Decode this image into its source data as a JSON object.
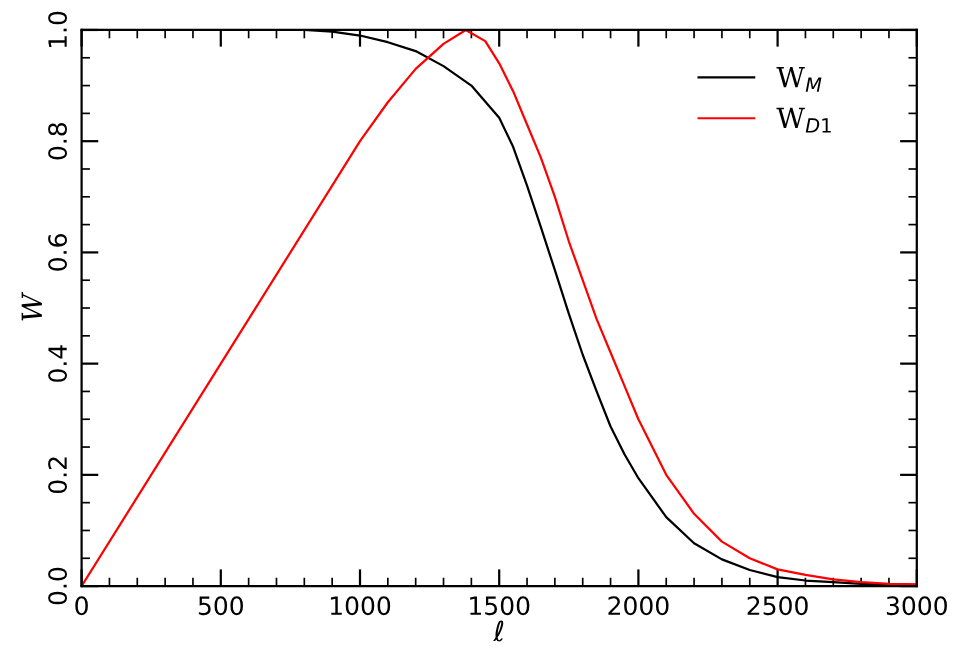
{
  "chart_data": {
    "type": "line",
    "xlabel": "ℓ",
    "ylabel": "W",
    "xlim": [
      0,
      3000
    ],
    "xticks": [
      0,
      500,
      1000,
      1500,
      2000,
      2500,
      3000
    ],
    "ylim": [
      0,
      1
    ],
    "yticks": [
      {
        "value": 0,
        "label": "0.0"
      },
      0.2,
      0.4,
      0.6,
      0.8,
      {
        "value": 1,
        "label": "1.0"
      }
    ],
    "grid": false,
    "legend": "top right",
    "marker": "none",
    "line_style": "solid",
    "series": [
      {
        "name": "W$_{M}$",
        "color": "#000000",
        "x": [
          0,
          500,
          800,
          900,
          1000,
          1100,
          1200,
          1300,
          1400,
          1500,
          1550,
          1600,
          1650,
          1700,
          1750,
          1800,
          1850,
          1900,
          1950,
          2000,
          2100,
          2200,
          2300,
          2400,
          2500,
          2600,
          2700,
          2800,
          3000
        ],
        "values": [
          1,
          1,
          1,
          0.997,
          0.99,
          0.978,
          0.962,
          0.935,
          0.9,
          0.842,
          0.79,
          0.72,
          0.645,
          0.568,
          0.49,
          0.416,
          0.35,
          0.287,
          0.237,
          0.194,
          0.124,
          0.077,
          0.048,
          0.029,
          0.016,
          0.01,
          0.007,
          0.004,
          0.002
        ]
      },
      {
        "name": "W$_{D1}$",
        "color": "#ff0000",
        "x": [
          0,
          500,
          1000,
          1100,
          1200,
          1300,
          1380,
          1450,
          1500,
          1550,
          1600,
          1650,
          1700,
          1750,
          1800,
          1850,
          1900,
          1950,
          2000,
          2100,
          2200,
          2300,
          2400,
          2500,
          2600,
          2700,
          2800,
          2900,
          3000
        ],
        "values": [
          0,
          0.4,
          0.8,
          0.87,
          0.93,
          0.975,
          1.0,
          0.98,
          0.94,
          0.89,
          0.83,
          0.77,
          0.7,
          0.62,
          0.55,
          0.48,
          0.42,
          0.36,
          0.3,
          0.2,
          0.13,
          0.08,
          0.05,
          0.03,
          0.02,
          0.012,
          0.007,
          0.004,
          0.003
        ]
      }
    ]
  }
}
